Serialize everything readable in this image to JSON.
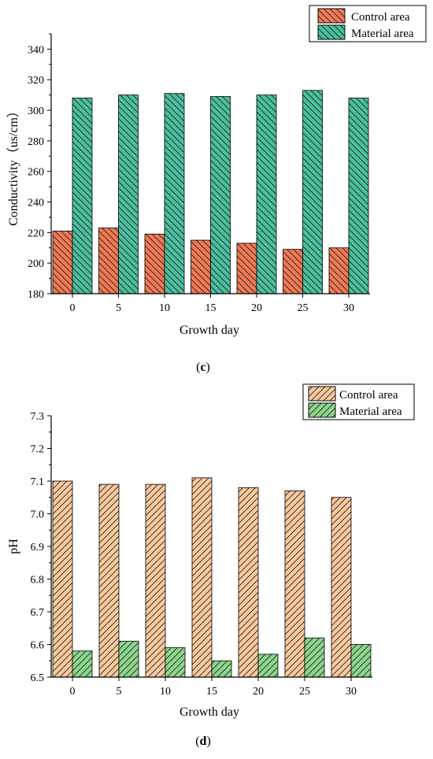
{
  "chart_data": [
    {
      "type": "bar",
      "panel_label": "(c)",
      "panel_letter": "c",
      "xlabel": "Growth day",
      "ylabel": "Conductivity（us/cm）",
      "categories": [
        "0",
        "5",
        "10",
        "15",
        "20",
        "25",
        "30"
      ],
      "ylim": [
        180,
        350
      ],
      "yticks": [
        "180",
        "200",
        "220",
        "240",
        "260",
        "280",
        "300",
        "320",
        "340"
      ],
      "grid": false,
      "legend_position": "top-right",
      "series": [
        {
          "name": "Control area",
          "values": [
            221,
            223,
            219,
            215,
            213,
            209,
            210
          ],
          "color": "#f07a55"
        },
        {
          "name": "Material area",
          "values": [
            308,
            310,
            311,
            309,
            310,
            313,
            308
          ],
          "color": "#4bbf9e"
        }
      ]
    },
    {
      "type": "bar",
      "panel_label": "(d)",
      "panel_letter": "d",
      "xlabel": "Growth day",
      "ylabel": "pH",
      "categories": [
        "0",
        "5",
        "10",
        "15",
        "20",
        "25",
        "30"
      ],
      "ylim": [
        6.5,
        7.3
      ],
      "yticks": [
        "6.5",
        "6.6",
        "6.7",
        "6.8",
        "6.9",
        "7.0",
        "7.1",
        "7.2",
        "7.3"
      ],
      "grid": false,
      "legend_position": "top-right",
      "series": [
        {
          "name": "Control area",
          "values": [
            7.1,
            7.09,
            7.09,
            7.11,
            7.08,
            7.07,
            7.05
          ],
          "color": "#f9c89e"
        },
        {
          "name": "Material area",
          "values": [
            6.58,
            6.61,
            6.59,
            6.55,
            6.57,
            6.62,
            6.6
          ],
          "color": "#8cd68c"
        }
      ]
    }
  ]
}
